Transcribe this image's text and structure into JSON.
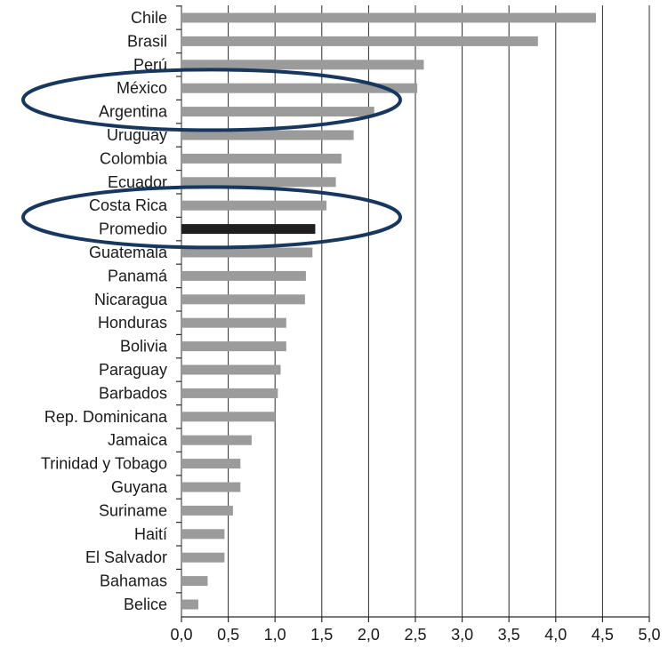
{
  "chart_data": {
    "type": "bar",
    "orientation": "horizontal",
    "categories": [
      "Chile",
      "Brasil",
      "Perú",
      "México",
      "Argentina",
      "Uruguay",
      "Colombia",
      "Ecuador",
      "Costa Rica",
      "Promedio",
      "Guatemala",
      "Panamá",
      "Nicaragua",
      "Honduras",
      "Bolivia",
      "Paraguay",
      "Barbados",
      "Rep. Dominicana",
      "Jamaica",
      "Trinidad y Tobago",
      "Guyana",
      "Suriname",
      "Haití",
      "El Salvador",
      "Bahamas",
      "Belice"
    ],
    "values": [
      4.43,
      3.81,
      2.59,
      2.52,
      2.06,
      1.84,
      1.71,
      1.65,
      1.55,
      1.43,
      1.4,
      1.33,
      1.32,
      1.12,
      1.12,
      1.06,
      1.03,
      1.0,
      0.75,
      0.63,
      0.63,
      0.55,
      0.46,
      0.46,
      0.28,
      0.18
    ],
    "highlight_category": "Promedio",
    "xlim": [
      0,
      5
    ],
    "xticks": [
      0,
      0.5,
      1.0,
      1.5,
      2.0,
      2.5,
      3.0,
      3.5,
      4.0,
      4.5,
      5.0
    ],
    "xtick_labels": [
      "0,0",
      "0,5",
      "1,0",
      "1,5",
      "2,0",
      "2,5",
      "3,0",
      "3,5",
      "4,0",
      "4,5",
      "5,0"
    ],
    "grid": "vertical",
    "colors": {
      "bar": "#9b9b9b",
      "highlight_bar": "#1f1f1f",
      "ellipse": "#17375e"
    },
    "annotations": [
      {
        "shape": "ellipse",
        "encloses": [
          "México",
          "Argentina"
        ]
      },
      {
        "shape": "ellipse",
        "encloses": [
          "Costa Rica",
          "Promedio"
        ]
      }
    ],
    "title": "",
    "xlabel": "",
    "ylabel": ""
  }
}
